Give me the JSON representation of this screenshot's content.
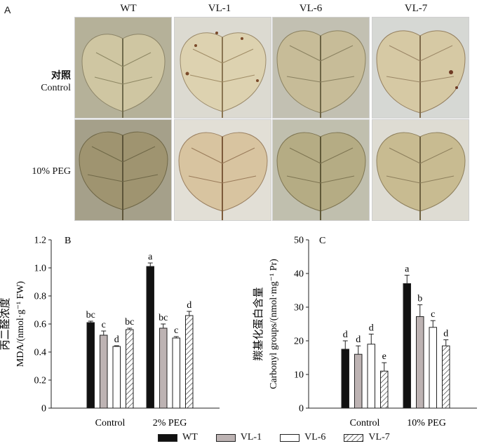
{
  "panelA": {
    "letter": "A",
    "columns": [
      "WT",
      "VL-1",
      "VL-6",
      "VL-7"
    ],
    "rows": [
      {
        "label_cn": "对照",
        "label_en": "Control"
      },
      {
        "label_cn": "",
        "label_en": "10% PEG"
      }
    ]
  },
  "legend": {
    "items": [
      {
        "name": "WT",
        "fill": "#111111",
        "pattern": "solid"
      },
      {
        "name": "VL-1",
        "fill": "#bdb3b3",
        "pattern": "solid"
      },
      {
        "name": "VL-6",
        "fill": "#ffffff",
        "pattern": "solid"
      },
      {
        "name": "VL-7",
        "fill": "#ffffff",
        "pattern": "hatch"
      }
    ]
  },
  "chart_data": [
    {
      "letter": "B",
      "type": "bar",
      "ylabel_cn": "丙二醛浓度",
      "ylabel_en": "MDA/(nmol·g⁻¹ FW)",
      "ylim": [
        0,
        1.2
      ],
      "yticks": [
        "0",
        "0.2",
        "0.4",
        "0.6",
        "0.8",
        "1.0",
        "1.2"
      ],
      "categories": [
        "Control",
        "2% PEG"
      ],
      "series": [
        {
          "name": "WT",
          "values": [
            0.61,
            1.01
          ],
          "errors": [
            0.01,
            0.025
          ],
          "letters": [
            "bc",
            "a"
          ]
        },
        {
          "name": "VL-1",
          "values": [
            0.52,
            0.57
          ],
          "errors": [
            0.03,
            0.03
          ],
          "letters": [
            "c",
            "bc"
          ]
        },
        {
          "name": "VL-6",
          "values": [
            0.44,
            0.5
          ],
          "errors": [
            0.005,
            0.01
          ],
          "letters": [
            "d",
            "c"
          ]
        },
        {
          "name": "VL-7",
          "values": [
            0.56,
            0.66
          ],
          "errors": [
            0.01,
            0.03
          ],
          "letters": [
            "bc",
            "d"
          ]
        }
      ]
    },
    {
      "letter": "C",
      "type": "bar",
      "ylabel_cn": "羰基化蛋白含量",
      "ylabel_en": "Carbonyl groups/(nmol·mg⁻¹ Pr)",
      "ylim": [
        0,
        50
      ],
      "yticks": [
        "0",
        "10",
        "20",
        "30",
        "40",
        "50"
      ],
      "categories": [
        "Control",
        "10% PEG"
      ],
      "series": [
        {
          "name": "WT",
          "values": [
            17.5,
            37
          ],
          "errors": [
            2.5,
            2.5
          ],
          "letters": [
            "d",
            "a"
          ]
        },
        {
          "name": "VL-1",
          "values": [
            16,
            27.2
          ],
          "errors": [
            2.5,
            3.5
          ],
          "letters": [
            "d",
            "b"
          ]
        },
        {
          "name": "VL-6",
          "values": [
            19,
            24
          ],
          "errors": [
            3,
            2
          ],
          "letters": [
            "d",
            "c"
          ]
        },
        {
          "name": "VL-7",
          "values": [
            11,
            18.5
          ],
          "errors": [
            2.5,
            1.8
          ],
          "letters": [
            "e",
            "d"
          ]
        }
      ]
    }
  ]
}
